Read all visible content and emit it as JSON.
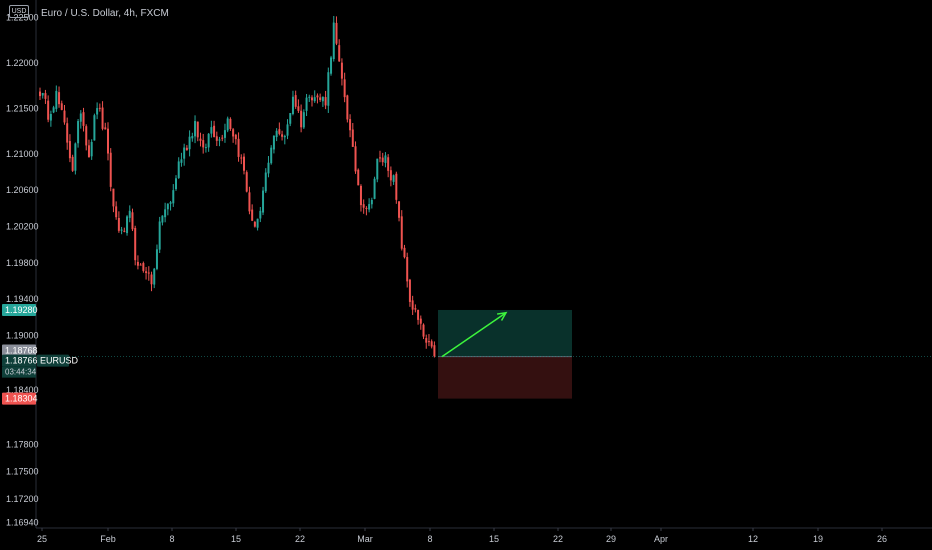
{
  "currency_badge": "USD",
  "chart_data": {
    "type": "candlestick",
    "title": "Euro / U.S. Dollar, 4h, FXCM",
    "y_ticks": [
      "1.22500",
      "1.22000",
      "1.21500",
      "1.21000",
      "1.20600",
      "1.20200",
      "1.19800",
      "1.19400",
      "1.19000",
      "1.18400",
      "1.17800",
      "1.17500",
      "1.17200",
      "1.16940"
    ],
    "x_ticks": [
      "25",
      "Feb",
      "8",
      "15",
      "22",
      "Mar",
      "8",
      "15",
      "22",
      "29",
      "Apr",
      "12",
      "19",
      "26"
    ],
    "ylim": [
      1.1685,
      1.2265
    ],
    "grid": false,
    "price_labels": {
      "target": "1.19280",
      "grey": "1.18768",
      "current": "1.18766",
      "symbol": "EURUSD",
      "countdown": "03:44:34",
      "stop": "1.18304"
    },
    "position": {
      "type": "long",
      "entry": 1.18766,
      "target": 1.1928,
      "stop": 1.18304,
      "from_x": "Mar 8",
      "to_x": "Mar 23"
    },
    "trend_arrow": {
      "from": 1.18766,
      "to": 1.1925
    },
    "colors": {
      "up": "#26a69a",
      "down": "#ef5350",
      "profit_zone": "#0b3a32",
      "loss_zone": "#3a1212",
      "arrow": "#3cf43c"
    },
    "series": [
      {
        "name": "EURUSD",
        "waypoints": [
          [
            0,
            1.217
          ],
          [
            3,
            1.2145
          ],
          [
            6,
            1.2165
          ],
          [
            9,
            1.213
          ],
          [
            12,
            1.2085
          ],
          [
            15,
            1.215
          ],
          [
            18,
            1.21
          ],
          [
            21,
            1.2155
          ],
          [
            24,
            1.212
          ],
          [
            27,
            1.204
          ],
          [
            30,
            1.201
          ],
          [
            33,
            1.203
          ],
          [
            36,
            1.197
          ],
          [
            39,
            1.1975
          ],
          [
            41,
            1.1955
          ],
          [
            43,
            1.2
          ],
          [
            45,
            1.2035
          ],
          [
            48,
            1.2045
          ],
          [
            51,
            1.209
          ],
          [
            54,
            1.211
          ],
          [
            57,
            1.2135
          ],
          [
            60,
            1.21
          ],
          [
            63,
            1.213
          ],
          [
            66,
            1.2115
          ],
          [
            69,
            1.214
          ],
          [
            72,
            1.2115
          ],
          [
            75,
            1.208
          ],
          [
            78,
            1.202
          ],
          [
            81,
            1.2035
          ],
          [
            84,
            1.209
          ],
          [
            87,
            1.213
          ],
          [
            90,
            1.2115
          ],
          [
            93,
            1.2165
          ],
          [
            96,
            1.2135
          ],
          [
            99,
            1.217
          ],
          [
            102,
            1.216
          ],
          [
            105,
            1.216
          ],
          [
            108,
            1.224
          ],
          [
            110,
            1.2195
          ],
          [
            112,
            1.2165
          ],
          [
            115,
            1.21
          ],
          [
            118,
            1.205
          ],
          [
            121,
            1.204
          ],
          [
            124,
            1.209
          ],
          [
            127,
            1.2095
          ],
          [
            130,
            1.207
          ],
          [
            133,
            1.2
          ],
          [
            136,
            1.194
          ],
          [
            139,
            1.1915
          ],
          [
            142,
            1.189
          ],
          [
            145,
            1.1877
          ]
        ]
      }
    ]
  }
}
